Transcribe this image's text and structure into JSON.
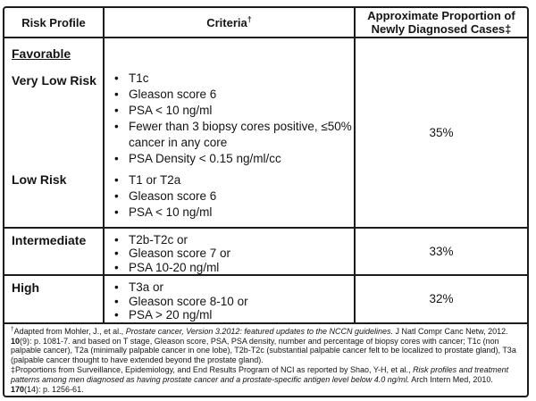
{
  "table": {
    "headers": [
      {
        "label": "Risk Profile"
      },
      {
        "label": "Criteria",
        "marker": "†"
      },
      {
        "label": "Approximate Proportion of Newly Diagnosed Cases‡"
      }
    ],
    "groups": [
      {
        "name": "favorable",
        "proportion": "35%",
        "subrows": [
          {
            "label": "Favorable"
          },
          {
            "label": "Very Low Risk",
            "bullets": [
              "T1c",
              "Gleason score 6",
              "PSA < 10 ng/ml",
              "Fewer than 3 biopsy cores positive, ≤50% cancer in any core",
              "PSA Density < 0.15 ng/ml/cc"
            ]
          },
          {
            "label": "Low Risk",
            "bullets": [
              "T1 or T2a",
              "Gleason score 6",
              "PSA < 10 ng/ml"
            ]
          }
        ]
      },
      {
        "name": "intermediate",
        "label": "Intermediate",
        "bullets": [
          "T2b-T2c or",
          "Gleason score 7 or",
          "PSA 10-20 ng/ml"
        ],
        "proportion": "33%"
      },
      {
        "name": "high",
        "label": "High",
        "bullets": [
          "T3a or",
          "Gleason score 8-10 or",
          "PSA > 20 ng/ml"
        ],
        "proportion": "32%"
      }
    ]
  },
  "footnotes": {
    "note1": {
      "segments": [
        {
          "t": "†",
          "sup": true
        },
        {
          "t": "Adapted  from Mohler, J., et al., "
        },
        {
          "t": "Prostate cancer, Version 3.2012: featured updates to the NCCN guidelines.",
          "i": true
        },
        {
          "t": " J Natl Compr Canc Netw, 2012. "
        },
        {
          "t": "10",
          "b": true
        },
        {
          "t": "(9): p. 1081-7.  and based on T stage, Gleason score, PSA, PSA density, number and percentage of biopsy cores with cancer; T1c (non palpable cancer), T2a (minimally palpable cancer in one lobe), T2b-T2c (substantial palpable cancer felt to be localized to prostate gland), T3a (palpable cancer thought to have extended beyond the prostate gland)."
        }
      ]
    },
    "note2": {
      "segments": [
        {
          "t": "‡Proportions from Surveillance, Epidemiology, and End Results Program of NCI as reported by Shao, Y-H, et al., "
        },
        {
          "t": "Risk profiles and treatment patterns among men diagnosed as having prostate cancer and a prostate-specific antigen level below 4.0 ng/ml.",
          "i": true
        },
        {
          "t": " Arch Intern Med, 2010. "
        },
        {
          "t": "170",
          "b": true
        },
        {
          "t": "(14): p. 1256-61."
        }
      ]
    }
  }
}
